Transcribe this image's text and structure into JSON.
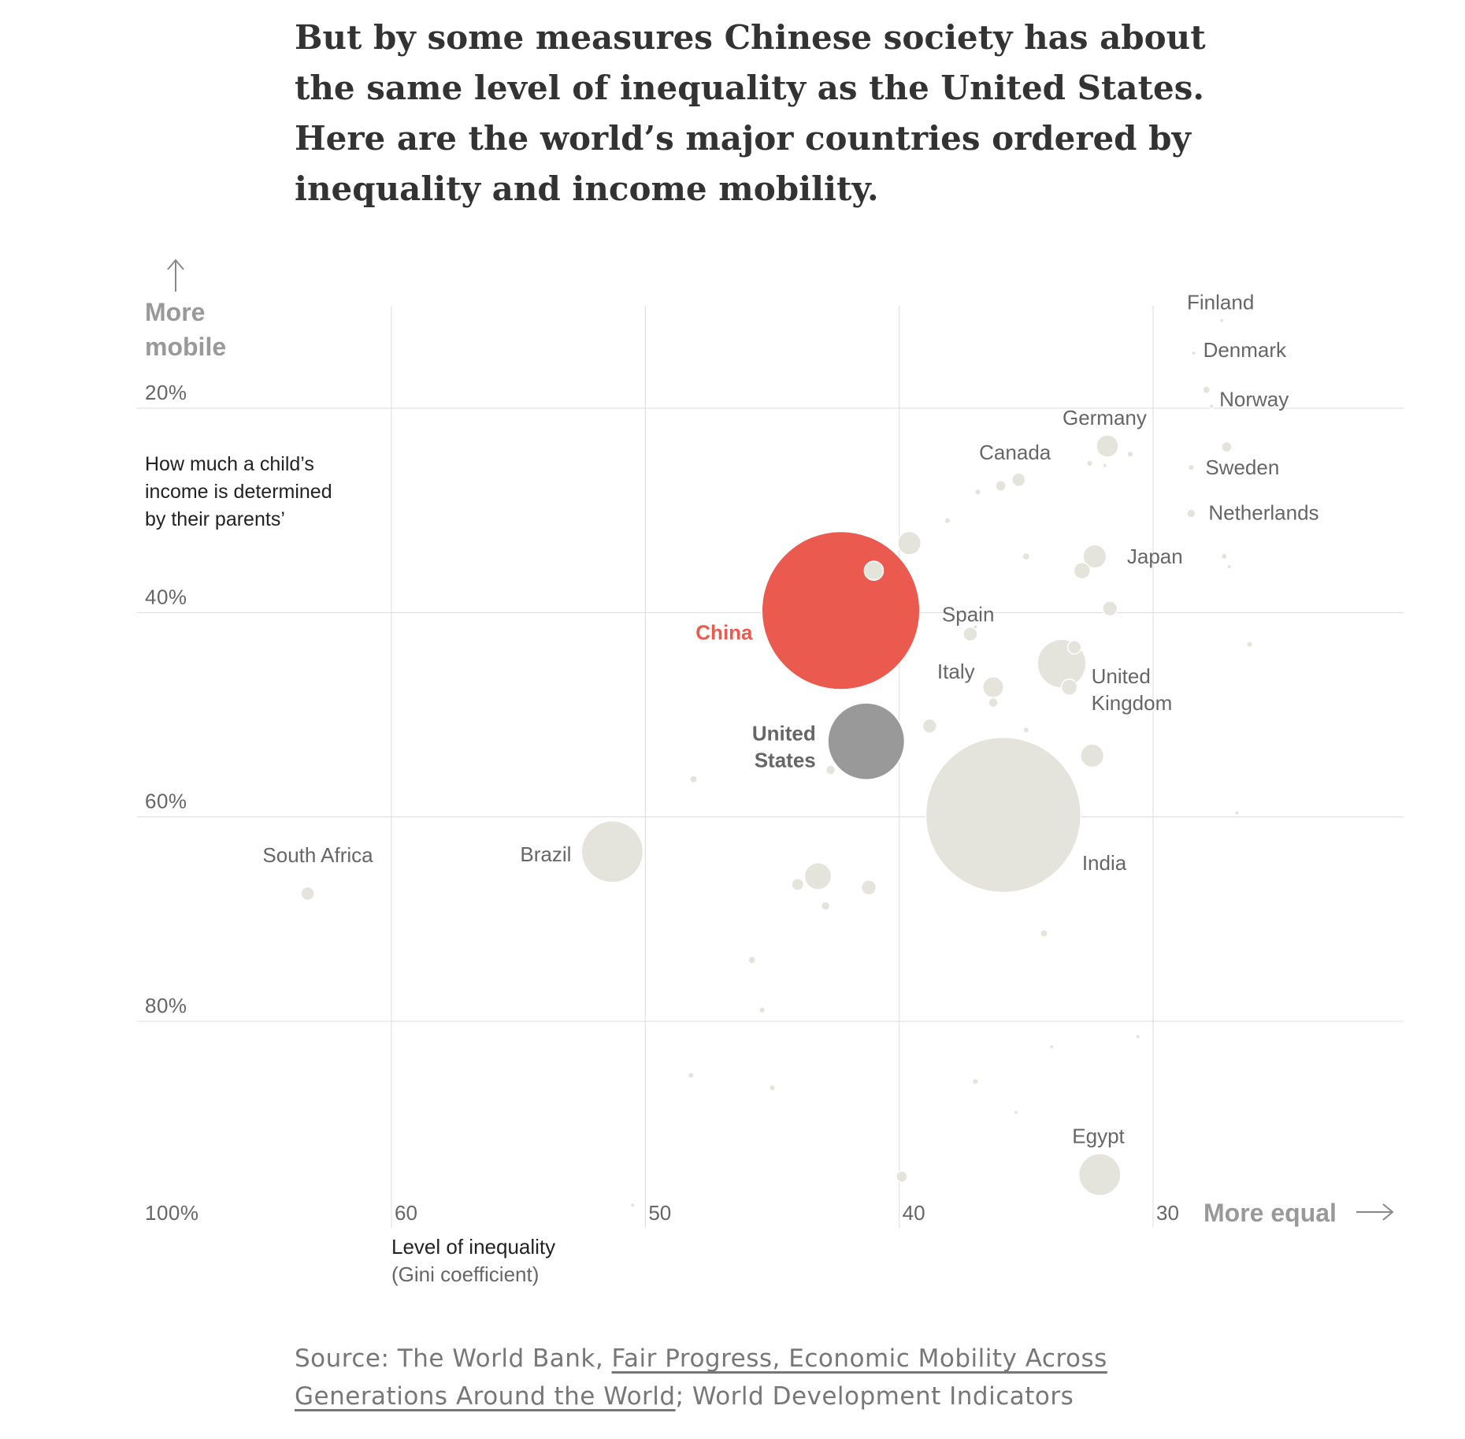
{
  "headline": "But by some measures Chinese society has about the same level of inequality as the United States. Here are the world’s major countries ordered by inequality and income mobility.",
  "chart_data": {
    "type": "scatter",
    "title": "",
    "xlabel": "Level of inequality",
    "xlabel_sub": "(Gini coefficient)",
    "ylabel_lines": [
      "How much a child’s",
      "income is determined",
      "by their parents’"
    ],
    "y_direction_label": [
      "More",
      "mobile"
    ],
    "x_direction_label": "More equal",
    "xlim": [
      65,
      25
    ],
    "ylim": [
      10,
      100
    ],
    "x_ticks": [
      60,
      50,
      40,
      30
    ],
    "x_tick_labels": [
      "60",
      "50",
      "40",
      "30"
    ],
    "y_ticks": [
      20,
      40,
      60,
      80,
      100
    ],
    "y_tick_labels": [
      "20%",
      "40%",
      "60%",
      "80%",
      "100%"
    ],
    "grid": true,
    "colors": {
      "default": "#e4e3dc",
      "china": "#eb5a4e",
      "united_states": "#999999",
      "label": "#666666",
      "grid": "#dcdcdc"
    },
    "points": [
      {
        "label": "Finland",
        "x": 27.3,
        "y": 11.4,
        "size": 1
      },
      {
        "label": "Denmark",
        "x": 28.4,
        "y": 14.6,
        "size": 1
      },
      {
        "label": "Norway",
        "x": 27.7,
        "y": 19.8,
        "size": 1
      },
      {
        "x": 27.9,
        "y": 18.2,
        "size": 3
      },
      {
        "label": "Sweden",
        "x": 28.5,
        "y": 25.8,
        "size": 2
      },
      {
        "x": 27.1,
        "y": 23.8,
        "size": 6
      },
      {
        "label": "Germany",
        "x": 31.8,
        "y": 23.7,
        "size": 27
      },
      {
        "x": 30.9,
        "y": 24.5,
        "size": 2
      },
      {
        "x": 32.5,
        "y": 25.4,
        "size": 2
      },
      {
        "x": 31.9,
        "y": 25.6,
        "size": 1
      },
      {
        "label": "Canada",
        "x": 35.3,
        "y": 27.0,
        "size": 10
      },
      {
        "x": 36.0,
        "y": 27.6,
        "size": 6
      },
      {
        "x": 36.9,
        "y": 28.2,
        "size": 2
      },
      {
        "label": "Netherlands",
        "x": 28.5,
        "y": 30.3,
        "size": 4
      },
      {
        "x": 38.1,
        "y": 31.0,
        "size": 2
      },
      {
        "x": 39.6,
        "y": 33.2,
        "size": 30
      },
      {
        "label": "Japan",
        "x": 32.3,
        "y": 34.5,
        "size": 30
      },
      {
        "x": 35.0,
        "y": 34.5,
        "size": 3
      },
      {
        "x": 27.2,
        "y": 34.5,
        "size": 2
      },
      {
        "x": 27.0,
        "y": 35.5,
        "size": 1
      },
      {
        "x": 41.0,
        "y": 35.9,
        "size": 20
      },
      {
        "x": 32.8,
        "y": 35.9,
        "size": 15
      },
      {
        "x": 31.7,
        "y": 39.6,
        "size": 12
      },
      {
        "label": "China",
        "x": 42.3,
        "y": 39.8,
        "size": 1380,
        "highlight": "china"
      },
      {
        "label": "Spain",
        "x": 37.2,
        "y": 42.1,
        "size": 11
      },
      {
        "x": 37.0,
        "y": 41.4,
        "size": 1
      },
      {
        "x": 33.1,
        "y": 43.4,
        "size": 10
      },
      {
        "x": 26.2,
        "y": 43.1,
        "size": 2
      },
      {
        "x": 33.6,
        "y": 45.0,
        "size": 130
      },
      {
        "label": "Italy",
        "x": 36.3,
        "y": 47.3,
        "size": 24
      },
      {
        "label": "United Kingdom",
        "x": 33.3,
        "y": 47.3,
        "size": 14
      },
      {
        "x": 36.3,
        "y": 48.8,
        "size": 5
      },
      {
        "x": 38.8,
        "y": 51.1,
        "size": 11
      },
      {
        "x": 35.0,
        "y": 51.5,
        "size": 2
      },
      {
        "label": "United States",
        "x": 41.3,
        "y": 52.6,
        "size": 325,
        "highlight": "united_states"
      },
      {
        "x": 32.4,
        "y": 54.0,
        "size": 30
      },
      {
        "x": 42.7,
        "y": 55.4,
        "size": 5
      },
      {
        "x": 48.1,
        "y": 56.3,
        "size": 3
      },
      {
        "label": "India",
        "x": 35.9,
        "y": 59.8,
        "size": 1330
      },
      {
        "x": 26.7,
        "y": 59.6,
        "size": 1
      },
      {
        "label": "Brazil",
        "x": 51.3,
        "y": 63.4,
        "size": 210
      },
      {
        "label": "South Africa",
        "x": 63.3,
        "y": 67.5,
        "size": 10
      },
      {
        "x": 43.2,
        "y": 65.8,
        "size": 40
      },
      {
        "x": 44.0,
        "y": 66.6,
        "size": 8
      },
      {
        "x": 41.2,
        "y": 66.9,
        "size": 12
      },
      {
        "x": 42.9,
        "y": 68.7,
        "size": 4
      },
      {
        "x": 34.3,
        "y": 71.4,
        "size": 3
      },
      {
        "x": 45.8,
        "y": 74.0,
        "size": 3
      },
      {
        "x": 45.4,
        "y": 78.9,
        "size": 2
      },
      {
        "x": 30.6,
        "y": 81.5,
        "size": 1
      },
      {
        "x": 34.0,
        "y": 82.5,
        "size": 1
      },
      {
        "x": 48.2,
        "y": 85.3,
        "size": 2
      },
      {
        "x": 45.0,
        "y": 86.5,
        "size": 2
      },
      {
        "x": 37.0,
        "y": 85.9,
        "size": 2
      },
      {
        "x": 35.4,
        "y": 88.9,
        "size": 1
      },
      {
        "label": "Egypt",
        "x": 32.1,
        "y": 95.0,
        "size": 97
      },
      {
        "x": 39.9,
        "y": 95.2,
        "size": 7
      },
      {
        "x": 50.5,
        "y": 98.0,
        "size": 1
      }
    ]
  },
  "source": {
    "prefix": "Source: The World Bank, ",
    "link_text": "Fair Progress, Economic Mobility Across Generations Around the World",
    "suffix": "; World Development Indicators"
  }
}
